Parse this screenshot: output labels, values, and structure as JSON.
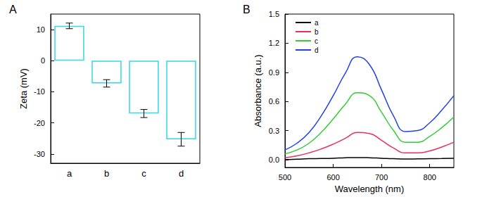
{
  "chart_data": [
    {
      "type": "bar",
      "title": "A",
      "y_label": "Zeta (mV)",
      "categories": [
        "a",
        "b",
        "c",
        "d"
      ],
      "values": [
        11.2,
        -7.3,
        -17.0,
        -25.3
      ],
      "errors": [
        0.9,
        1.2,
        1.3,
        2.2
      ],
      "color": "#33d6e6",
      "ylim": [
        -33,
        15
      ],
      "yticks": [
        -30,
        -20,
        -10,
        0,
        10
      ],
      "grid": false
    },
    {
      "type": "line",
      "title": "B",
      "x_label": "Wavelength (nm)",
      "y_label": "Absorbance (a.u.)",
      "x": [
        500,
        525,
        550,
        575,
        600,
        625,
        650,
        675,
        700,
        725,
        750,
        775,
        800,
        825,
        850
      ],
      "series": [
        {
          "name": "a",
          "color": "#000000",
          "values": [
            0.0,
            0.005,
            0.01,
            0.012,
            0.015,
            0.02,
            0.022,
            0.02,
            0.015,
            0.01,
            0.007,
            0.008,
            0.01,
            0.012,
            0.015
          ]
        },
        {
          "name": "b",
          "color": "#e8305a",
          "values": [
            0.02,
            0.04,
            0.07,
            0.11,
            0.16,
            0.22,
            0.28,
            0.27,
            0.2,
            0.12,
            0.07,
            0.07,
            0.09,
            0.13,
            0.18
          ]
        },
        {
          "name": "c",
          "color": "#33cc33",
          "values": [
            0.06,
            0.1,
            0.17,
            0.28,
            0.42,
            0.57,
            0.69,
            0.66,
            0.49,
            0.3,
            0.18,
            0.18,
            0.24,
            0.33,
            0.44
          ]
        },
        {
          "name": "d",
          "color": "#1f3ff0",
          "values": [
            0.1,
            0.17,
            0.28,
            0.45,
            0.66,
            0.89,
            1.06,
            0.98,
            0.72,
            0.45,
            0.29,
            0.3,
            0.38,
            0.51,
            0.66
          ]
        }
      ],
      "xlim": [
        500,
        850
      ],
      "xticks": [
        500,
        600,
        700,
        800
      ],
      "ylim": [
        -0.08,
        1.5
      ],
      "yticks": [
        {
          "value": 0,
          "label": "0.0"
        },
        0.3,
        0.6,
        0.9,
        1.2,
        1.5
      ],
      "legend": "upper left",
      "grid": false
    }
  ]
}
